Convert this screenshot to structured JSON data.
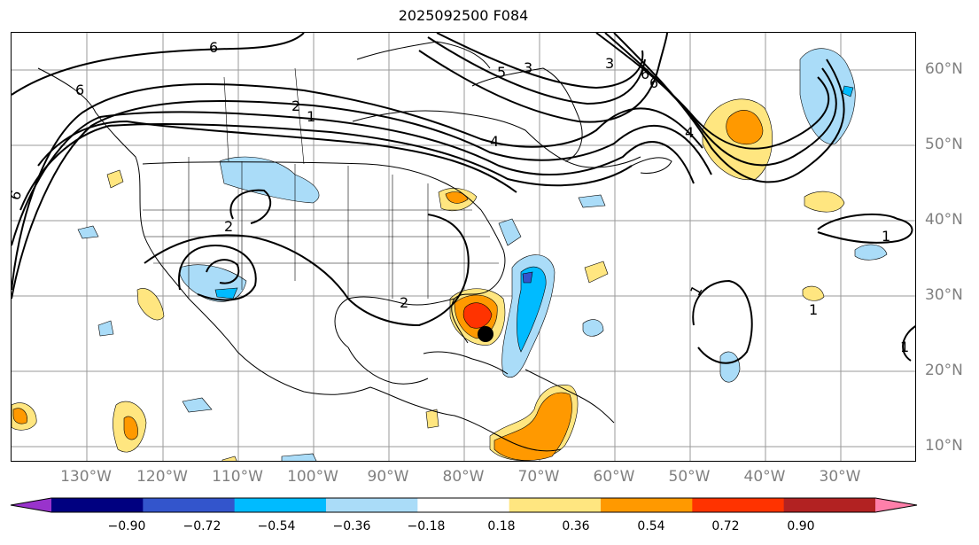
{
  "title": "2025092500 F084",
  "lon_labels": [
    "130°W",
    "120°W",
    "110°W",
    "100°W",
    "90°W",
    "80°W",
    "70°W",
    "60°W",
    "50°W",
    "40°W",
    "30°W"
  ],
  "lat_labels": [
    "60°N",
    "50°N",
    "40°N",
    "30°N",
    "20°N",
    "10°N"
  ],
  "contour_labels": [
    "6",
    "6",
    "2",
    "2",
    "1",
    "5",
    "3",
    "4",
    "3",
    "6",
    "6",
    "4",
    "6",
    "2",
    "1",
    "1",
    "1",
    "1"
  ],
  "colorbar": {
    "ticks": [
      "−0.90",
      "−0.72",
      "−0.54",
      "−0.36",
      "−0.18",
      "0.18",
      "0.36",
      "0.54",
      "0.72",
      "0.90"
    ],
    "colors": [
      "#9933cc",
      "#000080",
      "#3355cc",
      "#00bbff",
      "#aadcf8",
      "#ffffff",
      "#ffe680",
      "#ff9900",
      "#ff3300",
      "#b22222",
      "#ff7faa"
    ]
  }
}
